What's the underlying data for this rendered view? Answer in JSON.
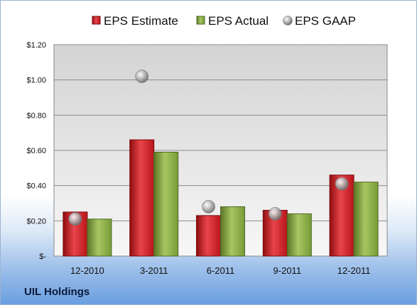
{
  "company_label": "UIL Holdings",
  "chart_data": {
    "type": "bar",
    "categories": [
      "12-2010",
      "3-2011",
      "6-2011",
      "9-2011",
      "12-2011"
    ],
    "series": [
      {
        "name": "EPS Estimate",
        "type": "bar",
        "color": "#c4161c",
        "values": [
          0.25,
          0.66,
          0.23,
          0.26,
          0.46
        ]
      },
      {
        "name": "EPS Actual",
        "type": "bar",
        "color": "#7c9c3a",
        "values": [
          0.21,
          0.59,
          0.28,
          0.24,
          0.42
        ]
      },
      {
        "name": "EPS GAAP",
        "type": "scatter",
        "color": "#a7a7a7",
        "values": [
          0.21,
          1.02,
          0.28,
          0.24,
          0.41
        ]
      }
    ],
    "y_tick_labels": [
      "$-",
      "$0.20",
      "$0.40",
      "$0.60",
      "$0.80",
      "$1.00",
      "$1.20"
    ],
    "ylim": [
      0,
      1.2
    ],
    "grid": true,
    "legend_position": "top"
  }
}
